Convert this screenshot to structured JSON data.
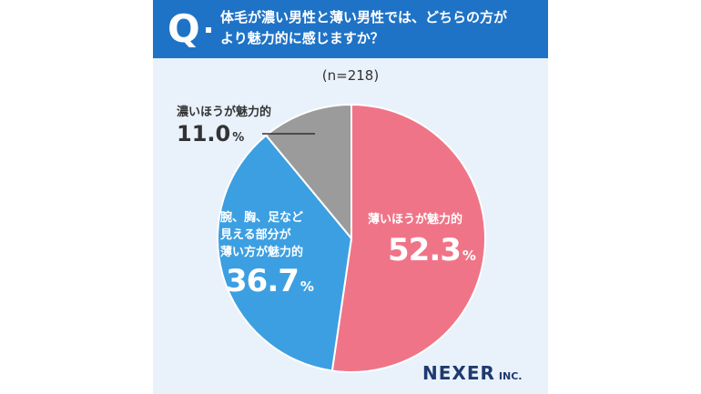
{
  "question": {
    "mark": "Q",
    "line1": "体毛が濃い男性と薄い男性では、どちらの方が",
    "line2": "より魅力的に感じますか？"
  },
  "sample_size": "(n=218)",
  "logo": {
    "name": "NEXER",
    "suffix": "INC."
  },
  "colors": {
    "header_bg": "#1f73c6",
    "thin_body_hair": "#f07487",
    "partial": "#3c9fe2",
    "thick_body_hair": "#9b9b9b"
  },
  "labels": {
    "thin": {
      "line1": "薄いほうが魅力的",
      "value": "52.3",
      "unit": "%"
    },
    "partial": {
      "line1": "腕、胸、足など",
      "line2": "見える部分が",
      "line3": "薄い方が魅力的",
      "value": "36.7",
      "unit": "%"
    },
    "thick": {
      "line1": "濃いほうが魅力的",
      "value": "11.0",
      "unit": "%"
    }
  },
  "chart_data": {
    "type": "pie",
    "title": "体毛が濃い男性と薄い男性では、どちらの方がより魅力的に感じますか？",
    "n": 218,
    "slices": [
      {
        "label": "薄いほうが魅力的",
        "value": 52.3,
        "color": "#f07487"
      },
      {
        "label": "腕、胸、足など見える部分が薄い方が魅力的",
        "value": 36.7,
        "color": "#3c9fe2"
      },
      {
        "label": "濃いほうが魅力的",
        "value": 11.0,
        "color": "#9b9b9b"
      }
    ]
  }
}
